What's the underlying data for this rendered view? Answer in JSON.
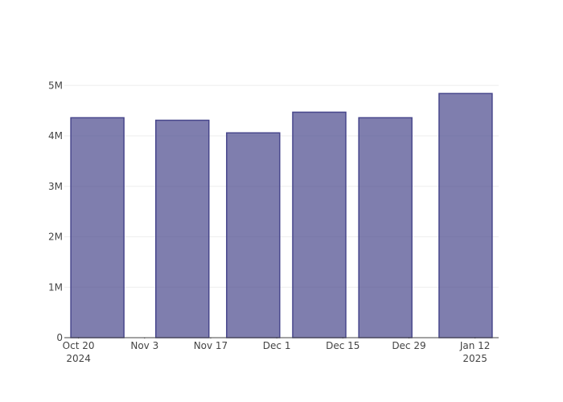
{
  "chart_data": {
    "type": "bar",
    "x": [
      "2024-10-24",
      "2024-11-11",
      "2024-11-26",
      "2024-12-10",
      "2024-12-24",
      "2025-01-10"
    ],
    "values": [
      4360000,
      4310000,
      4060000,
      4470000,
      4360000,
      4840000
    ],
    "color": "#48478c",
    "xlim": [
      "2024-10-17",
      "2025-01-17"
    ],
    "xticks": [
      {
        "value": "2024-10-20",
        "label": "Oct 20\n2024"
      },
      {
        "value": "2024-11-03",
        "label": "Nov 3"
      },
      {
        "value": "2024-11-17",
        "label": "Nov 17"
      },
      {
        "value": "2024-12-01",
        "label": "Dec 1"
      },
      {
        "value": "2024-12-15",
        "label": "Dec 15"
      },
      {
        "value": "2024-12-29",
        "label": "Dec 29"
      },
      {
        "value": "2025-01-12",
        "label": "Jan 12\n2025"
      }
    ],
    "ylim": [
      0,
      5100000
    ],
    "yticks": [
      0,
      {
        "value": 1000000,
        "label": "1M"
      },
      {
        "value": 2000000,
        "label": "2M"
      },
      {
        "value": 3000000,
        "label": "3M"
      },
      {
        "value": 4000000,
        "label": "4M"
      },
      {
        "value": 5000000,
        "label": "5M"
      }
    ],
    "grid": true
  }
}
